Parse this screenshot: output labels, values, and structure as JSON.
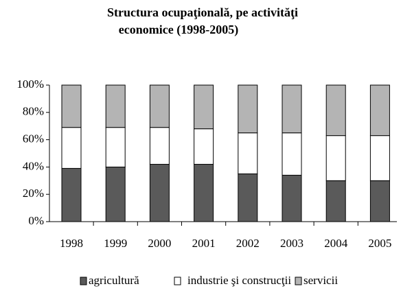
{
  "chart_data": {
    "type": "stacked_bar",
    "title": [
      "Structura ocupaţională, pe activităţi",
      "economice (1998-2005)"
    ],
    "categories": [
      "1998",
      "1999",
      "2000",
      "2001",
      "2002",
      "2003",
      "2004",
      "2005"
    ],
    "series": [
      {
        "name": "agricultură",
        "color": "#5a5a5a",
        "values": [
          39,
          40,
          42,
          42,
          35,
          34,
          30,
          30
        ]
      },
      {
        "name": "industrie şi construcţii",
        "color": "#ffffff",
        "values": [
          30,
          29,
          27,
          26,
          30,
          31,
          33,
          33
        ]
      },
      {
        "name": "servicii",
        "color": "#b4b4b4",
        "values": [
          31,
          31,
          31,
          32,
          35,
          35,
          37,
          37
        ]
      }
    ],
    "ylim": [
      0,
      100
    ],
    "yticks": [
      {
        "value": 0,
        "label": "0%"
      },
      {
        "value": 20,
        "label": "20%"
      },
      {
        "value": 40,
        "label": "40%"
      },
      {
        "value": 60,
        "label": "60%"
      },
      {
        "value": 80,
        "label": "80%"
      },
      {
        "value": 100,
        "label": "100%"
      }
    ],
    "grid": false,
    "legend": "bottom"
  }
}
